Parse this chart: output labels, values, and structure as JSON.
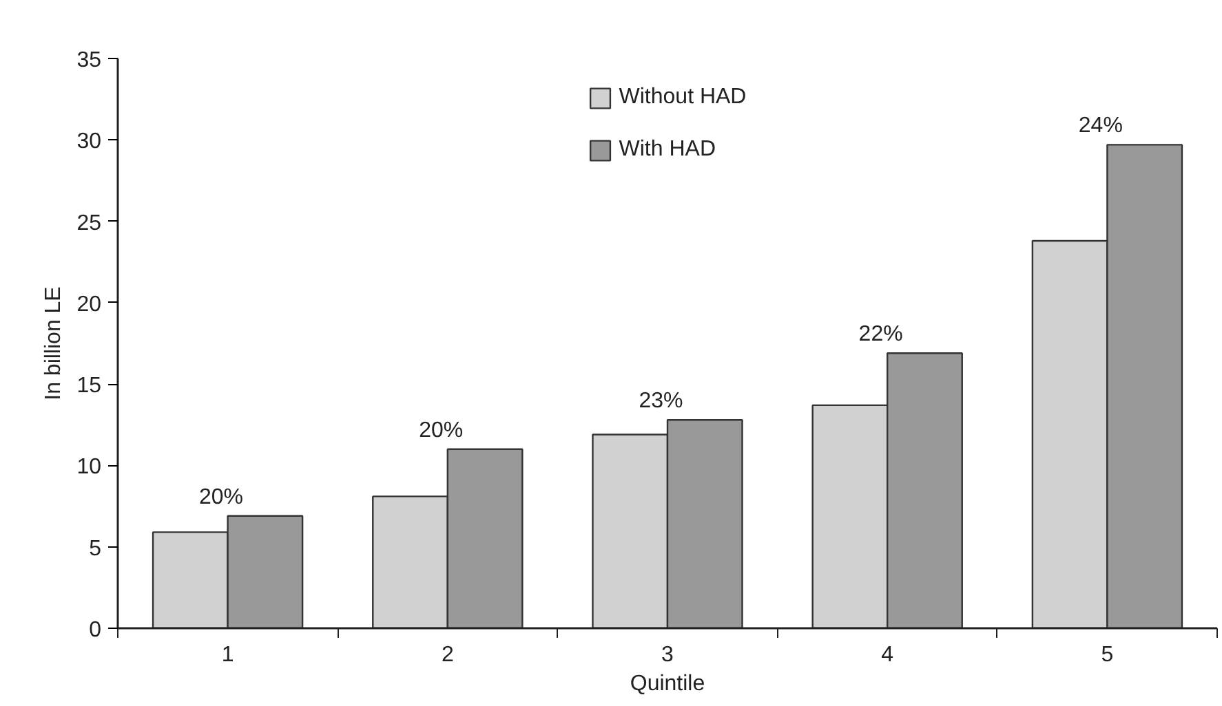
{
  "chart_data": {
    "type": "bar",
    "xlabel": "Quintile",
    "ylabel": "In billion LE",
    "categories": [
      "1",
      "2",
      "3",
      "4",
      "5"
    ],
    "series": [
      {
        "name": "Without HAD",
        "color": "#d0d1d0",
        "values": [
          5.9,
          8.1,
          11.9,
          13.7,
          23.8
        ]
      },
      {
        "name": "With HAD",
        "color": "#999999",
        "values": [
          6.9,
          11.0,
          12.8,
          16.9,
          29.7
        ]
      }
    ],
    "ylim": [
      0,
      35
    ],
    "yticks": [
      0,
      5,
      10,
      15,
      20,
      25,
      30,
      35
    ],
    "grid": false,
    "legend": "top",
    "annotations": [
      {
        "text": "20%",
        "x": "1",
        "y": 6.9
      },
      {
        "text": "20%",
        "x": "2",
        "y": 11.0
      },
      {
        "text": "23%",
        "x": "3",
        "y": 12.8
      },
      {
        "text": "22%",
        "x": "4",
        "y": 16.9
      },
      {
        "text": "24%",
        "x": "5",
        "y": 29.7
      }
    ]
  }
}
